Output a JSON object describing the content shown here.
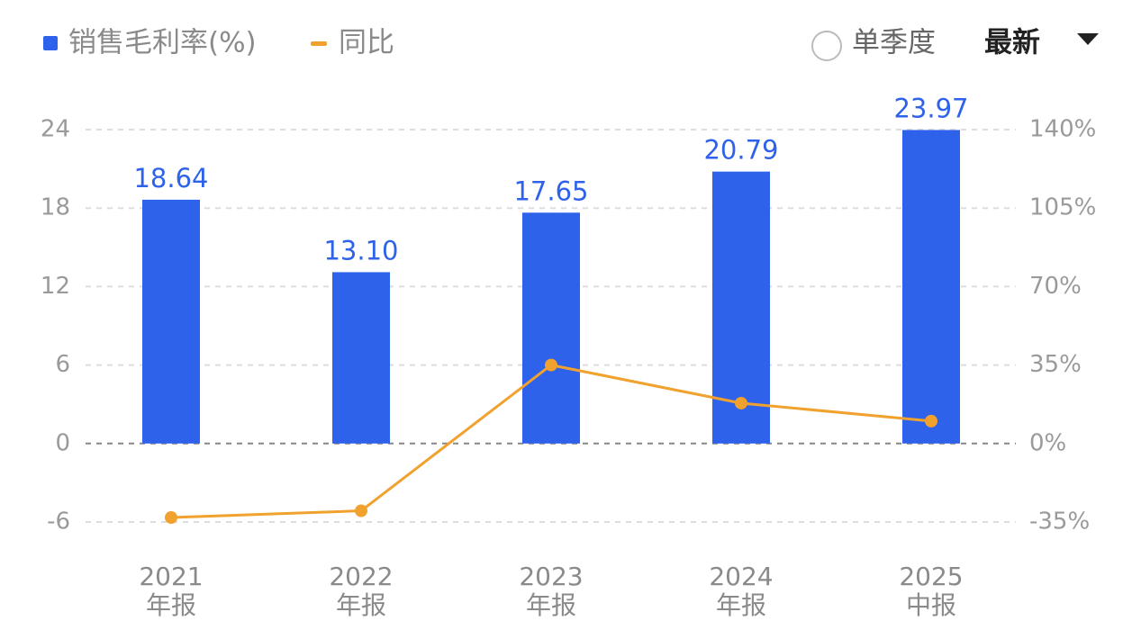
{
  "chart_data": {
    "type": "bar_line",
    "categories": [
      [
        "2021",
        "年报"
      ],
      [
        "2022",
        "年报"
      ],
      [
        "2023",
        "年报"
      ],
      [
        "2024",
        "年报"
      ],
      [
        "2025",
        "中报"
      ]
    ],
    "series": [
      {
        "name": "销售毛利率(%)",
        "color": "#2f62ea",
        "type": "bar",
        "values": [
          18.64,
          13.1,
          17.65,
          20.79,
          23.97
        ],
        "value_labels": [
          "18.64",
          "13.10",
          "17.65",
          "20.79",
          "23.97"
        ]
      },
      {
        "name": "同比",
        "color": "#f0a12e",
        "type": "line",
        "axis": "y2",
        "values": [
          -33,
          -30,
          35,
          18,
          10
        ]
      }
    ],
    "ylim": [
      -6,
      24
    ],
    "yticks": [
      -6,
      0,
      6,
      12,
      18,
      24
    ],
    "y2lim": [
      -35,
      140
    ],
    "y2ticks": [
      {
        "value": -35,
        "label": "-35%"
      },
      {
        "value": 0,
        "label": "0%"
      },
      {
        "value": 35,
        "label": "35%"
      },
      {
        "value": 70,
        "label": "70%"
      },
      {
        "value": 105,
        "label": "105%"
      },
      {
        "value": 140,
        "label": "140%"
      }
    ],
    "grid": true,
    "controls": {
      "option": "单季度",
      "sort": "最新"
    }
  }
}
